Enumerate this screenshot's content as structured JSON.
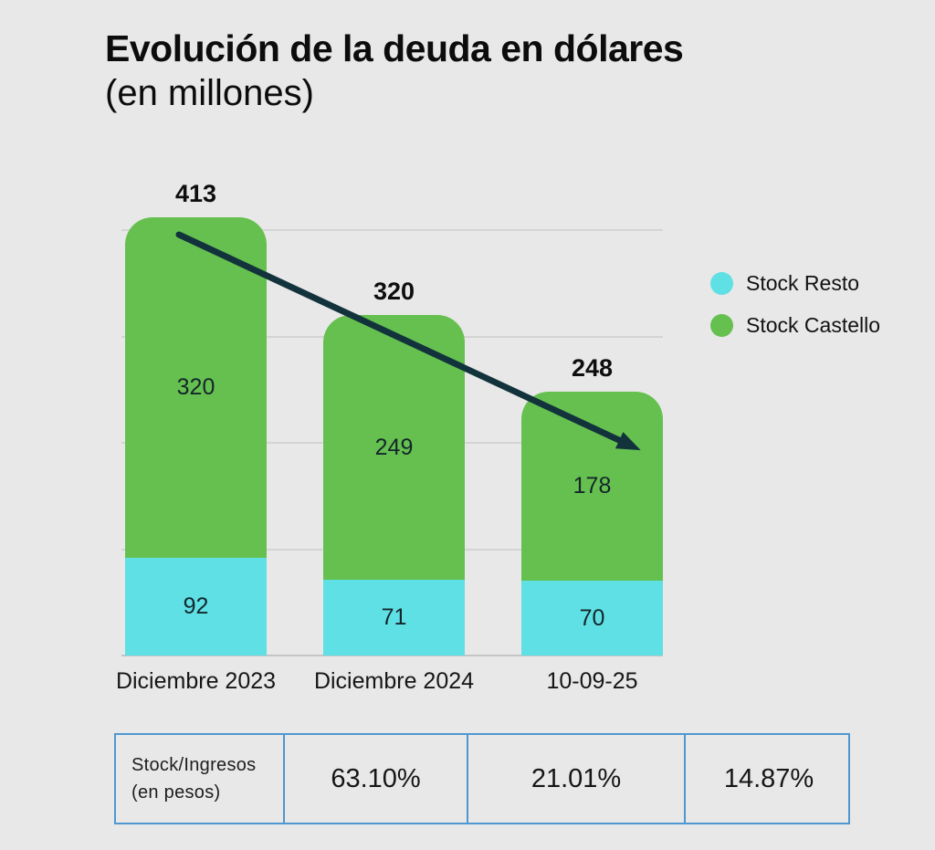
{
  "title": {
    "line1": "Evolución de la deuda en dólares",
    "line2": "(en millones)"
  },
  "legend": {
    "items": [
      {
        "label": "Stock Resto",
        "color": "#5ee0e4"
      },
      {
        "label": "Stock Castello",
        "color": "#66c04f"
      }
    ]
  },
  "chart_data": {
    "type": "bar",
    "stacked": true,
    "title": "Evolución de la deuda en dólares (en millones)",
    "categories": [
      "Diciembre 2023",
      "Diciembre 2024",
      "10-09-25"
    ],
    "series": [
      {
        "name": "Stock Castello",
        "color": "#66c04f",
        "values": [
          320,
          249,
          178
        ]
      },
      {
        "name": "Stock Resto",
        "color": "#5ee0e4",
        "values": [
          92,
          71,
          70
        ]
      }
    ],
    "totals": [
      413,
      320,
      248
    ],
    "ylim": [
      0,
      419
    ],
    "gridline_step": 100,
    "grid": true,
    "y_axis_labels": false,
    "legend_position": "right",
    "annotation": "downward-trend-arrow"
  },
  "table": {
    "header": {
      "line1": "Stock/Ingresos",
      "line2": "(en pesos)"
    },
    "values": [
      "63.10%",
      "21.01%",
      "14.87%"
    ]
  },
  "colors": {
    "background": "#e8e8e8",
    "green": "#66c04f",
    "cyan": "#5ee0e4",
    "arrow": "#12333b",
    "gridline": "#d4d4d4",
    "table_border": "#4f97d0"
  }
}
